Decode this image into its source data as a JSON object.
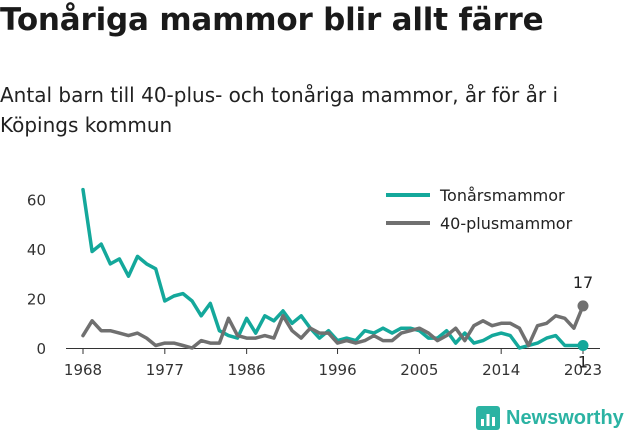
{
  "header": {
    "title": "Tonåriga mammor blir allt färre",
    "subtitle": "Antal barn till 40-plus- och tonåriga mammor, år för år i Köpings kommun"
  },
  "brand": {
    "name": "Newsworthy",
    "icon": "bar-chart-icon",
    "color": "#2bb3a3"
  },
  "chart_data": {
    "type": "line",
    "title": "Tonåriga mammor blir allt färre",
    "subtitle": "Antal barn till 40-plus- och tonåriga mammor, år för år i Köpings kommun",
    "xlabel": "",
    "ylabel": "",
    "xlim": [
      1968,
      2023
    ],
    "ylim": [
      0,
      65
    ],
    "x_ticks": [
      1968,
      1977,
      1986,
      1996,
      2005,
      2014,
      2023
    ],
    "y_ticks": [
      0,
      20,
      40,
      60
    ],
    "grid": false,
    "legend_position": "top-right",
    "x": [
      1968,
      1969,
      1970,
      1971,
      1972,
      1973,
      1974,
      1975,
      1976,
      1977,
      1978,
      1979,
      1980,
      1981,
      1982,
      1983,
      1984,
      1985,
      1986,
      1987,
      1988,
      1989,
      1990,
      1991,
      1992,
      1993,
      1994,
      1995,
      1996,
      1997,
      1998,
      1999,
      2000,
      2001,
      2002,
      2003,
      2004,
      2005,
      2006,
      2007,
      2008,
      2009,
      2010,
      2011,
      2012,
      2013,
      2014,
      2015,
      2016,
      2017,
      2018,
      2019,
      2020,
      2021,
      2022,
      2023
    ],
    "series": [
      {
        "name": "Tonårsmammor",
        "color": "#14a89b",
        "values": [
          64,
          39,
          42,
          34,
          36,
          29,
          37,
          34,
          32,
          19,
          21,
          22,
          19,
          13,
          18,
          7,
          5,
          4,
          12,
          6,
          13,
          11,
          15,
          10,
          13,
          8,
          4,
          7,
          3,
          4,
          3,
          7,
          6,
          8,
          6,
          8,
          8,
          7,
          4,
          4,
          7,
          2,
          6,
          2,
          3,
          5,
          6,
          5,
          0,
          1,
          2,
          4,
          5,
          1,
          1,
          1
        ],
        "end_label": "1"
      },
      {
        "name": "40-plusmammor",
        "color": "#707070",
        "values": [
          5,
          11,
          7,
          7,
          6,
          5,
          6,
          4,
          1,
          2,
          2,
          1,
          0,
          3,
          2,
          2,
          12,
          5,
          4,
          4,
          5,
          4,
          13,
          7,
          4,
          8,
          6,
          6,
          2,
          3,
          2,
          3,
          5,
          3,
          3,
          6,
          7,
          8,
          6,
          3,
          5,
          8,
          3,
          9,
          11,
          9,
          10,
          10,
          8,
          1,
          9,
          10,
          13,
          12,
          8,
          17
        ],
        "end_label": "17"
      }
    ]
  }
}
